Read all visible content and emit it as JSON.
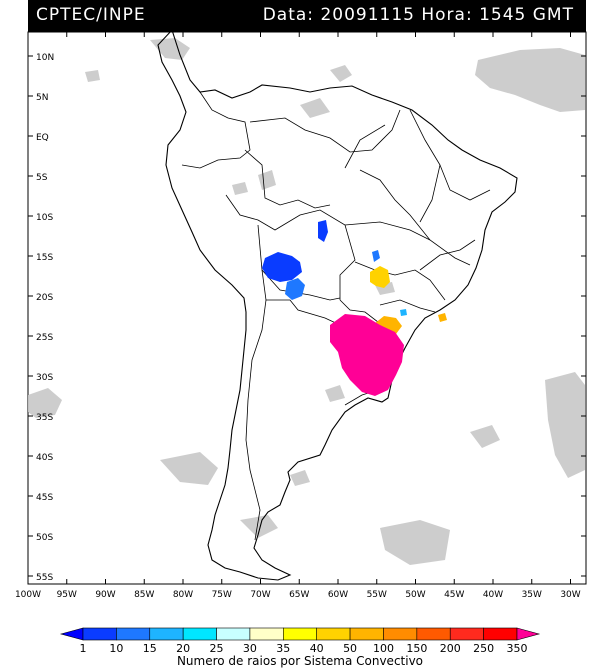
{
  "header": {
    "source": "CPTEC/INPE",
    "datetime": "Data: 20091115 Hora: 1545 GMT"
  },
  "map": {
    "lat_labels": [
      "10N",
      "5N",
      "EQ",
      "5S",
      "10S",
      "15S",
      "20S",
      "25S",
      "30S",
      "35S",
      "40S",
      "45S",
      "50S",
      "55S"
    ],
    "lat_values": [
      10,
      5,
      0,
      -5,
      -10,
      -15,
      -20,
      -25,
      -30,
      -35,
      -40,
      -45,
      -50,
      -55
    ],
    "lon_labels": [
      "100W",
      "95W",
      "90W",
      "85W",
      "80W",
      "75W",
      "70W",
      "65W",
      "60W",
      "55W",
      "50W",
      "45W",
      "40W",
      "35W",
      "30W"
    ],
    "lon_values": [
      -100,
      -95,
      -90,
      -85,
      -80,
      -75,
      -70,
      -65,
      -60,
      -55,
      -50,
      -45,
      -40,
      -35,
      -30
    ],
    "lon_range": [
      -100,
      -28
    ],
    "lat_range": [
      -56,
      13
    ]
  },
  "colorbar": {
    "title": "Numero de raios por Sistema Convectivo",
    "ticks": [
      "1",
      "10",
      "15",
      "20",
      "25",
      "30",
      "35",
      "40",
      "50",
      "100",
      "150",
      "200",
      "250",
      "350"
    ],
    "colors": [
      "#0000ff",
      "#0a3cff",
      "#1e78ff",
      "#1eb4ff",
      "#00e6ff",
      "#c8ffff",
      "#ffffc8",
      "#ffff00",
      "#ffd200",
      "#ffb400",
      "#ff8c00",
      "#ff5a00",
      "#ff2a1e",
      "#ff0000",
      "#ff0096"
    ]
  },
  "storms": [
    {
      "name": "storm-blue-bolivia",
      "color": "#0a3cff"
    },
    {
      "name": "storm-blue-bolivia-south",
      "color": "#1e78ff"
    },
    {
      "name": "storm-blue-mato-grosso",
      "color": "#0a3cff"
    },
    {
      "name": "storm-blue-goias",
      "color": "#1e78ff"
    },
    {
      "name": "storm-yellow-ms",
      "color": "#ffd200"
    },
    {
      "name": "storm-orange-parana",
      "color": "#ffb400"
    },
    {
      "name": "storm-cyan-sp",
      "color": "#1eb4ff"
    },
    {
      "name": "storm-orange-coast",
      "color": "#ffb400"
    },
    {
      "name": "storm-magenta-main",
      "color": "#ff0096"
    }
  ]
}
